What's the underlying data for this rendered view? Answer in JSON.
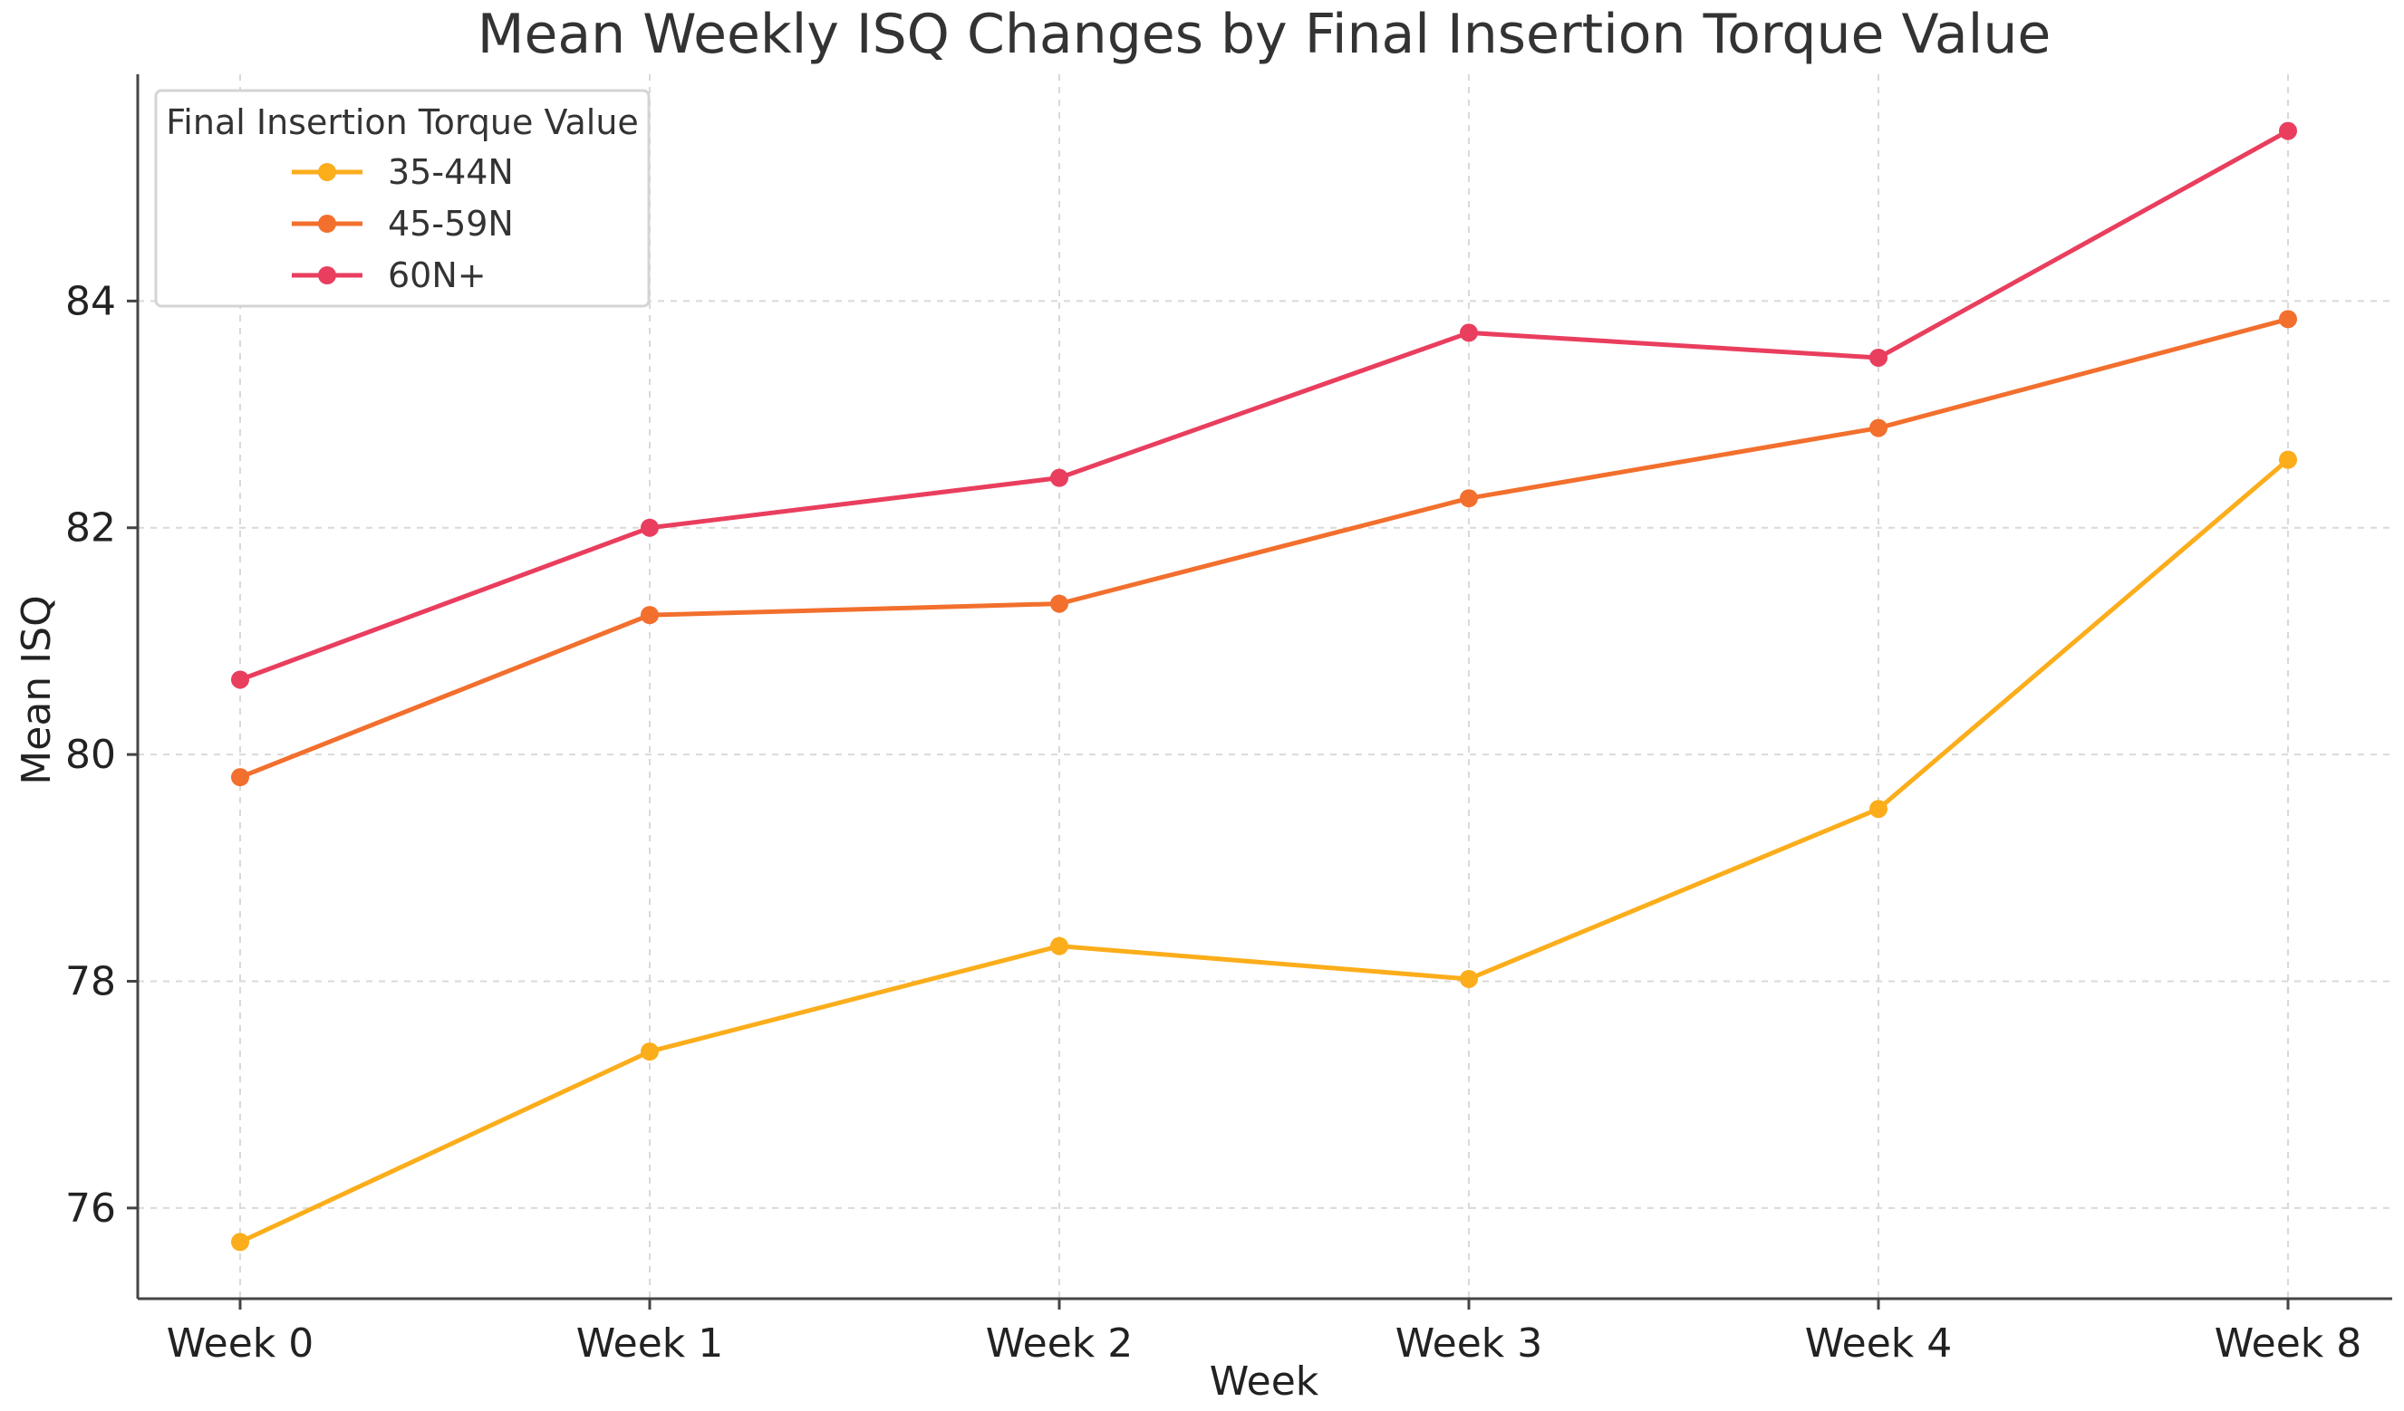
{
  "chart_data": {
    "type": "line",
    "title": "Mean Weekly ISQ Changes by Final Insertion Torque Value",
    "xlabel": "Week",
    "ylabel": "Mean ISQ",
    "categories": [
      "Week 0",
      "Week 1",
      "Week 2",
      "Week 3",
      "Week 4",
      "Week 8"
    ],
    "ylim": [
      75.2,
      86.0
    ],
    "yticks": [
      76,
      78,
      80,
      82,
      84
    ],
    "grid": true,
    "legend": {
      "title": "Final Insertion Torque Value",
      "position": "top-left"
    },
    "series": [
      {
        "name": "35-44N",
        "color": "#FBAD1B",
        "values": [
          75.7,
          77.38,
          78.31,
          78.02,
          79.52,
          82.6
        ]
      },
      {
        "name": "45-59N",
        "color": "#F26F2D",
        "values": [
          79.8,
          81.23,
          81.33,
          82.26,
          82.88,
          83.84
        ]
      },
      {
        "name": "60N+",
        "color": "#E93E5E",
        "values": [
          80.66,
          82.0,
          82.44,
          83.72,
          83.5,
          85.5
        ]
      }
    ]
  }
}
